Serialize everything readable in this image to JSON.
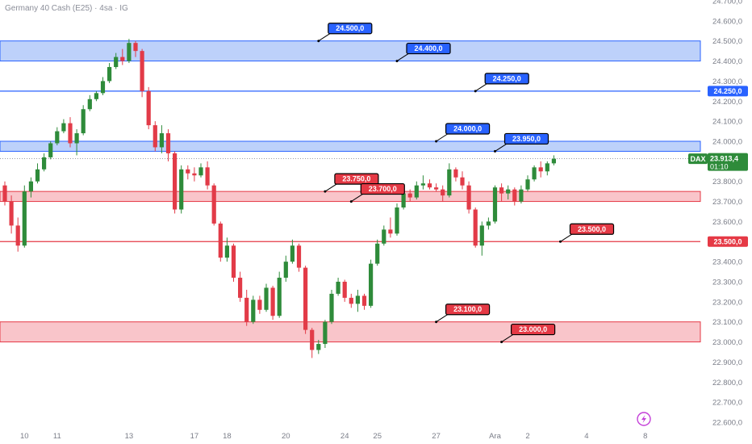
{
  "chart_title": "Germany 40 Cash (E25) · 4sa · IG",
  "colors": {
    "up": "#2e8b3a",
    "down": "#e23b48",
    "resistance_fill": "#a7c2f8",
    "resistance_line": "#2962ff",
    "support_fill": "#f7b7bd",
    "support_line": "#e53945",
    "current_price": "#2e8b3a"
  },
  "chart_data": {
    "type": "candlestick",
    "ylim": [
      22600,
      24700
    ],
    "yticks": [
      "22.600,0",
      "22.700,0",
      "22.800,0",
      "22.900,0",
      "23.000,0",
      "23.100,0",
      "23.200,0",
      "23.300,0",
      "23.400,0",
      "23.500,0",
      "23.600,0",
      "23.700,0",
      "23.800,0",
      "23.900,0",
      "24.000,0",
      "24.100,0",
      "24.200,0",
      "24.300,0",
      "24.400,0",
      "24.500,0",
      "24.600,0",
      "24.700,0"
    ],
    "xticks": [
      "10",
      "11",
      "13",
      "17",
      "18",
      "20",
      "24",
      "25",
      "27",
      "Ara",
      "2",
      "4",
      "8"
    ],
    "xtick_positions": [
      3,
      8,
      19,
      29,
      34,
      43,
      52,
      57,
      66,
      75,
      80,
      89,
      98
    ],
    "zones": [
      {
        "kind": "resistance",
        "low": 24400,
        "high": 24500
      },
      {
        "kind": "resistance",
        "low": 23950,
        "high": 24000
      },
      {
        "kind": "support",
        "low": 23700,
        "high": 23750
      },
      {
        "kind": "support",
        "low": 23000,
        "high": 23100
      }
    ],
    "levels": [
      {
        "kind": "resistance",
        "value": 24250,
        "tag": "24.250,0"
      },
      {
        "kind": "support",
        "value": 23500,
        "tag": "23.500,0"
      }
    ],
    "callouts": [
      {
        "label": "24.500,0",
        "value": 24500,
        "kind": "resistance",
        "index": 48
      },
      {
        "label": "24.400,0",
        "value": 24400,
        "kind": "resistance",
        "index": 60
      },
      {
        "label": "24.250,0",
        "value": 24250,
        "kind": "resistance",
        "index": 72
      },
      {
        "label": "24.000,0",
        "value": 24000,
        "kind": "resistance",
        "index": 66
      },
      {
        "label": "23.950,0",
        "value": 23950,
        "kind": "resistance",
        "index": 75
      },
      {
        "label": "23.750,0",
        "value": 23750,
        "kind": "support",
        "index": 49
      },
      {
        "label": "23.700,0",
        "value": 23700,
        "kind": "support",
        "index": 53
      },
      {
        "label": "23.500,0",
        "value": 23500,
        "kind": "support",
        "index": 85
      },
      {
        "label": "23.100,0",
        "value": 23100,
        "kind": "support",
        "index": 66
      },
      {
        "label": "23.000,0",
        "value": 23000,
        "kind": "support",
        "index": 76
      }
    ],
    "current": {
      "symbol": "DAX",
      "price": "23.913,4",
      "value": 23913,
      "countdown": "01:10"
    },
    "candles": [
      [
        23780,
        23800,
        23680,
        23700
      ],
      [
        23700,
        23730,
        23540,
        23580
      ],
      [
        23580,
        23620,
        23450,
        23480
      ],
      [
        23480,
        23780,
        23470,
        23750
      ],
      [
        23750,
        23820,
        23720,
        23800
      ],
      [
        23800,
        23890,
        23790,
        23860
      ],
      [
        23860,
        23940,
        23850,
        23920
      ],
      [
        23920,
        24000,
        23910,
        23990
      ],
      [
        23990,
        24070,
        23980,
        24050
      ],
      [
        24050,
        24110,
        24040,
        24090
      ],
      [
        24090,
        24120,
        23970,
        23990
      ],
      [
        23990,
        24060,
        23930,
        24040
      ],
      [
        24040,
        24180,
        24030,
        24160
      ],
      [
        24160,
        24230,
        24150,
        24210
      ],
      [
        24210,
        24250,
        24200,
        24240
      ],
      [
        24240,
        24320,
        24230,
        24300
      ],
      [
        24300,
        24390,
        24290,
        24370
      ],
      [
        24370,
        24440,
        24360,
        24420
      ],
      [
        24420,
        24460,
        24380,
        24400
      ],
      [
        24400,
        24510,
        24390,
        24490
      ],
      [
        24490,
        24500,
        24420,
        24450
      ],
      [
        24450,
        24460,
        24220,
        24250
      ],
      [
        24250,
        24270,
        24060,
        24080
      ],
      [
        24080,
        24100,
        23950,
        23970
      ],
      [
        23970,
        24080,
        23940,
        24040
      ],
      [
        24040,
        24060,
        23900,
        23940
      ],
      [
        23940,
        23950,
        23640,
        23660
      ],
      [
        23660,
        23880,
        23640,
        23860
      ],
      [
        23860,
        23880,
        23810,
        23840
      ],
      [
        23840,
        23870,
        23800,
        23830
      ],
      [
        23830,
        23890,
        23820,
        23870
      ],
      [
        23870,
        23900,
        23760,
        23780
      ],
      [
        23780,
        23790,
        23580,
        23590
      ],
      [
        23590,
        23600,
        23400,
        23420
      ],
      [
        23420,
        23520,
        23400,
        23480
      ],
      [
        23480,
        23490,
        23300,
        23320
      ],
      [
        23320,
        23350,
        23200,
        23220
      ],
      [
        23220,
        23260,
        23080,
        23100
      ],
      [
        23100,
        23230,
        23090,
        23210
      ],
      [
        23210,
        23230,
        23140,
        23160
      ],
      [
        23160,
        23290,
        23150,
        23270
      ],
      [
        23270,
        23280,
        23110,
        23130
      ],
      [
        23130,
        23350,
        23120,
        23320
      ],
      [
        23320,
        23430,
        23300,
        23400
      ],
      [
        23400,
        23510,
        23390,
        23480
      ],
      [
        23480,
        23490,
        23350,
        23370
      ],
      [
        23370,
        23380,
        23040,
        23060
      ],
      [
        23060,
        23070,
        22920,
        22960
      ],
      [
        22960,
        23010,
        22940,
        22990
      ],
      [
        22990,
        23110,
        22970,
        23100
      ],
      [
        23100,
        23260,
        23090,
        23240
      ],
      [
        23240,
        23320,
        23230,
        23300
      ],
      [
        23300,
        23310,
        23200,
        23220
      ],
      [
        23220,
        23240,
        23170,
        23190
      ],
      [
        23190,
        23260,
        23150,
        23230
      ],
      [
        23230,
        23240,
        23160,
        23180
      ],
      [
        23180,
        23410,
        23170,
        23390
      ],
      [
        23390,
        23510,
        23380,
        23490
      ],
      [
        23490,
        23580,
        23480,
        23560
      ],
      [
        23560,
        23620,
        23520,
        23540
      ],
      [
        23540,
        23690,
        23530,
        23670
      ],
      [
        23670,
        23760,
        23660,
        23740
      ],
      [
        23740,
        23760,
        23700,
        23720
      ],
      [
        23720,
        23800,
        23710,
        23780
      ],
      [
        23780,
        23830,
        23760,
        23790
      ],
      [
        23790,
        23810,
        23760,
        23770
      ],
      [
        23770,
        23790,
        23750,
        23760
      ],
      [
        23760,
        23780,
        23700,
        23730
      ],
      [
        23730,
        23890,
        23720,
        23860
      ],
      [
        23860,
        23870,
        23800,
        23820
      ],
      [
        23820,
        23850,
        23760,
        23780
      ],
      [
        23780,
        23800,
        23640,
        23660
      ],
      [
        23660,
        23670,
        23470,
        23480
      ],
      [
        23480,
        23600,
        23430,
        23580
      ],
      [
        23580,
        23620,
        23560,
        23600
      ],
      [
        23600,
        23780,
        23590,
        23770
      ],
      [
        23770,
        23790,
        23700,
        23740
      ],
      [
        23740,
        23780,
        23710,
        23760
      ],
      [
        23760,
        23770,
        23680,
        23700
      ],
      [
        23700,
        23780,
        23690,
        23760
      ],
      [
        23760,
        23830,
        23750,
        23810
      ],
      [
        23810,
        23880,
        23800,
        23870
      ],
      [
        23870,
        23900,
        23820,
        23850
      ],
      [
        23850,
        23900,
        23830,
        23890
      ],
      [
        23890,
        23930,
        23880,
        23913
      ]
    ]
  }
}
